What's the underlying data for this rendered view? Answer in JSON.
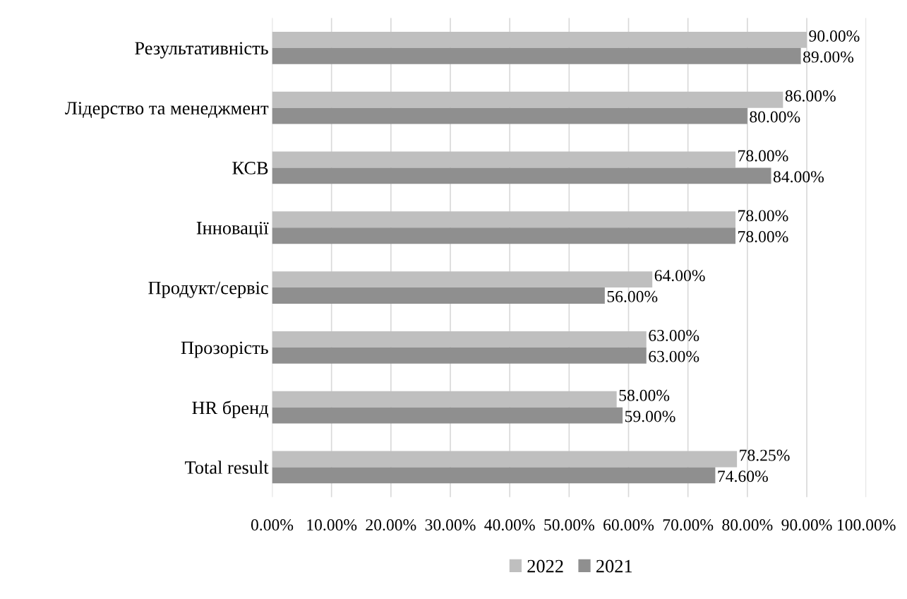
{
  "chart_data": {
    "type": "bar",
    "orientation": "horizontal",
    "categories": [
      "Результативність",
      "Лідерство та менеджмент",
      "КСВ",
      "Інновації",
      "Продукт/сервіс",
      "Прозорість",
      "HR бренд",
      "Total result"
    ],
    "series": [
      {
        "name": "2022",
        "color": "#bfbfbf",
        "values": [
          90,
          86,
          78,
          78,
          64,
          63,
          58,
          78.25
        ],
        "value_labels": [
          "90.00%",
          "86.00%",
          "78.00%",
          "78.00%",
          "64.00%",
          "63.00%",
          "58.00%",
          "78.25%"
        ]
      },
      {
        "name": "2021",
        "color": "#8f8f8f",
        "values": [
          89,
          80,
          84,
          78,
          56,
          63,
          59,
          74.6
        ],
        "value_labels": [
          "89.00%",
          "80.00%",
          "84.00%",
          "78.00%",
          "56.00%",
          "63.00%",
          "59.00%",
          "74.60%"
        ]
      }
    ],
    "xlim": [
      0,
      100
    ],
    "xticks": [
      {
        "value": 0,
        "label": "0.00%"
      },
      {
        "value": 10,
        "label": "10.00%"
      },
      {
        "value": 20,
        "label": "20.00%"
      },
      {
        "value": 30,
        "label": "30.00%"
      },
      {
        "value": 40,
        "label": "40.00%"
      },
      {
        "value": 50,
        "label": "50.00%"
      },
      {
        "value": 60,
        "label": "60.00%"
      },
      {
        "value": 70,
        "label": "70.00%"
      },
      {
        "value": 80,
        "label": "80.00%"
      },
      {
        "value": 90,
        "label": "90.00%"
      },
      {
        "value": 100,
        "label": "100.00%"
      }
    ],
    "grid": "x",
    "legend": "bottom"
  }
}
